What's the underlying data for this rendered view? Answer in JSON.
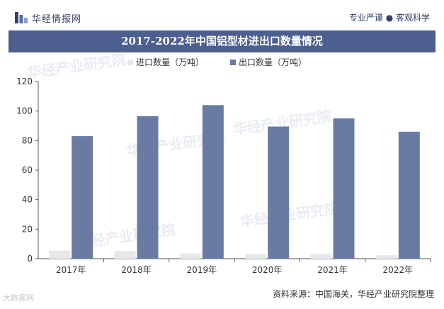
{
  "header": {
    "brand": "华经情报网",
    "slogan": "专业严谨 ● 客观科学"
  },
  "title": "2017-2022年中国铝型材进出口数量情况",
  "source": "资料来源：中国海关，华经产业研究院整理",
  "watermark": "华经产业研究院",
  "corner_watermark": "大数据网",
  "colors": {
    "title_bg": "#4c5f8f",
    "import": "#e6e8ec",
    "export": "#6a7ba3",
    "text": "#333333"
  },
  "chart_data": {
    "type": "bar",
    "title": "2017-2022年中国铝型材进出口数量情况",
    "categories": [
      "2017年",
      "2018年",
      "2019年",
      "2020年",
      "2021年",
      "2022年"
    ],
    "series": [
      {
        "name": "进口数量（万吨）",
        "values": [
          5.5,
          5.2,
          3.5,
          3.2,
          3.3,
          2.3
        ]
      },
      {
        "name": "出口数量（万吨）",
        "values": [
          83,
          96.5,
          104,
          89.5,
          95,
          86
        ]
      }
    ],
    "ylim": [
      0,
      120
    ],
    "yticks": [
      0,
      20,
      40,
      60,
      80,
      100,
      120
    ],
    "legend": "top",
    "grid": false
  }
}
